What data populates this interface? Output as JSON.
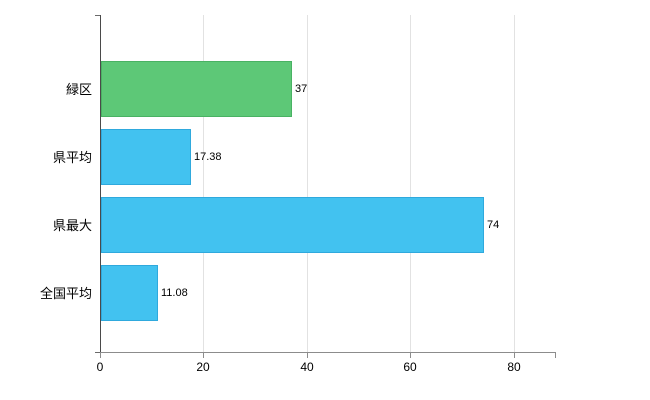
{
  "chart_data": {
    "type": "bar",
    "orientation": "horizontal",
    "title": "",
    "categories": [
      "緑区",
      "県平均",
      "県最大",
      "全国平均"
    ],
    "values": [
      37,
      17.38,
      74,
      11.08
    ],
    "value_labels": [
      "37",
      "17.38",
      "74",
      "11.08"
    ],
    "bar_colors": [
      "#5dc877",
      "#42c2f0",
      "#42c2f0",
      "#42c2f0"
    ],
    "bar_border_colors": [
      "#49b263",
      "#2fa9dd",
      "#2fa9dd",
      "#2fa9dd"
    ],
    "xlim": [
      0,
      88
    ],
    "xticks": [
      0,
      20,
      40,
      60,
      80
    ],
    "xtick_labels": [
      "0",
      "20",
      "40",
      "60",
      "80"
    ],
    "grid": true,
    "legend": "none",
    "colors": {
      "background": "#ffffff",
      "grid": "#e2e2e2",
      "x_axis": "#8c8c8c",
      "y_axis": "#4a4a4a",
      "text": "#000000"
    }
  }
}
